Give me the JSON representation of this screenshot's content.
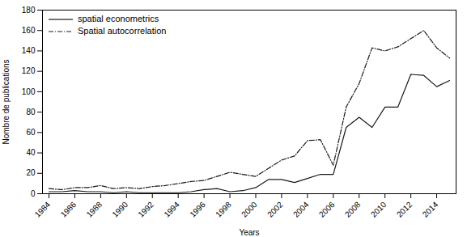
{
  "chart_data": {
    "type": "line",
    "x": [
      1984,
      1985,
      1986,
      1987,
      1988,
      1989,
      1990,
      1991,
      1992,
      1993,
      1994,
      1995,
      1996,
      1997,
      1998,
      1999,
      2000,
      2001,
      2002,
      2003,
      2004,
      2005,
      2006,
      2007,
      2008,
      2009,
      2010,
      2011,
      2012,
      2013,
      2014,
      2015
    ],
    "series": [
      {
        "name": "spatial econometrics",
        "color": "#1a1a1a",
        "line_style": "solid",
        "values": [
          2,
          2,
          3,
          2,
          2,
          1,
          2,
          1,
          1,
          1,
          1,
          2,
          4,
          5,
          2,
          3,
          6,
          14,
          14,
          11,
          15,
          19,
          19,
          65,
          75,
          65,
          85,
          85,
          117,
          116,
          105,
          111
        ]
      },
      {
        "name": "Spatial autocorrelation",
        "color": "#1a1a1a",
        "line_style": "dashdot",
        "values": [
          5,
          4,
          6,
          6,
          8,
          5,
          6,
          5,
          7,
          8,
          10,
          12,
          13,
          17,
          21,
          19,
          17,
          25,
          33,
          37,
          52,
          53,
          28,
          85,
          108,
          143,
          140,
          144,
          152,
          160,
          143,
          133
        ]
      }
    ],
    "xlabel": "Years",
    "ylabel": "Nombre de publications",
    "xlim": [
      1983.5,
      2015.5
    ],
    "xticks": [
      1984,
      1986,
      1988,
      1990,
      1992,
      1994,
      1996,
      1998,
      2000,
      2002,
      2004,
      2006,
      2008,
      2010,
      2012,
      2014
    ],
    "ylim": [
      0,
      180
    ],
    "yticks": [
      0,
      20,
      40,
      60,
      80,
      100,
      120,
      140,
      160,
      180
    ],
    "legend": "upper left",
    "grid": false
  }
}
